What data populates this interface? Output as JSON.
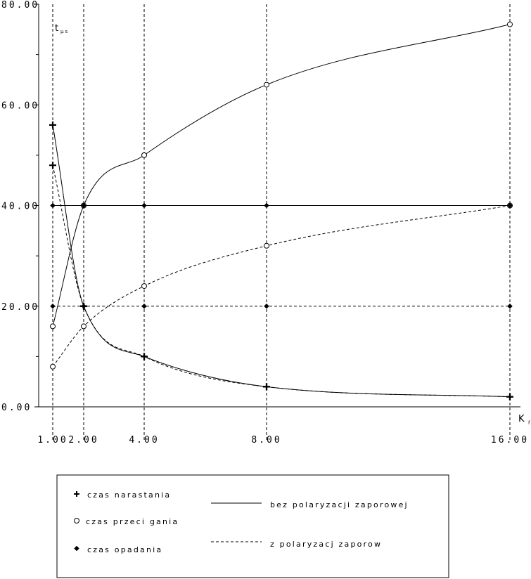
{
  "chart_data": {
    "type": "line",
    "title": "",
    "xlabel": "K",
    "xlabel_sub": "f",
    "ylabel": "t",
    "ylabel_sub": "μs",
    "xlim": [
      1,
      16
    ],
    "ylim": [
      0,
      80
    ],
    "x_ticks": [
      1,
      2,
      4,
      8,
      16
    ],
    "x_tick_labels": [
      "1.00",
      "2.00",
      "4.00",
      "8.00",
      "16.00"
    ],
    "y_ticks": [
      0,
      20,
      40,
      60,
      80
    ],
    "y_tick_labels": [
      "0.00",
      "20.00",
      "40.00",
      "60.00",
      "80.00"
    ],
    "grid": "dashed vertical lines at x ticks",
    "legend_position": "bottom",
    "legend": {
      "markers": [
        {
          "label": "czas narastania",
          "marker": "plus"
        },
        {
          "label": "czas przeci gania",
          "marker": "circle"
        },
        {
          "label": "czas opadania",
          "marker": "diamond"
        }
      ],
      "lines": [
        {
          "label": "bez polaryzacji zaporowej",
          "style": "solid"
        },
        {
          "label": "z polaryzacj  zaporow",
          "style": "dashed"
        }
      ]
    },
    "series": [
      {
        "metric": "czas narastania",
        "style": "solid",
        "marker": "plus",
        "x": [
          1,
          2,
          4,
          8,
          16
        ],
        "y": [
          56,
          20,
          10,
          4,
          2
        ]
      },
      {
        "metric": "czas narastania",
        "style": "dashed",
        "marker": "plus",
        "x": [
          1,
          2,
          4,
          8,
          16
        ],
        "y": [
          48,
          20,
          10,
          4,
          2
        ]
      },
      {
        "metric": "czas przeci gania",
        "style": "solid",
        "marker": "circle",
        "x": [
          1,
          2,
          4,
          8,
          16
        ],
        "y": [
          16,
          40,
          50,
          64,
          76
        ]
      },
      {
        "metric": "czas przeci gania",
        "style": "dashed",
        "marker": "circle",
        "x": [
          1,
          2,
          4,
          8,
          16
        ],
        "y": [
          8,
          16,
          24,
          32,
          40
        ]
      },
      {
        "metric": "czas opadania",
        "style": "solid",
        "marker": "diamond",
        "x": [
          1,
          2,
          4,
          8,
          16
        ],
        "y": [
          40,
          40,
          40,
          40,
          40
        ]
      },
      {
        "metric": "czas opadania",
        "style": "dashed",
        "marker": "diamond",
        "x": [
          1,
          2,
          4,
          8,
          16
        ],
        "y": [
          20,
          20,
          20,
          20,
          20
        ]
      }
    ]
  }
}
